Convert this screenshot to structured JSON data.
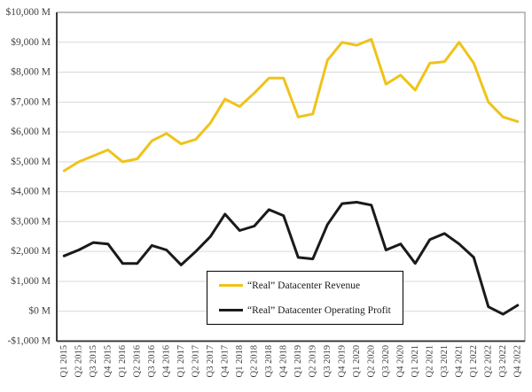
{
  "figure": {
    "background": "#FFFFFF",
    "plot_border_color": "#808080",
    "axis_line_color": "#262626",
    "gridline_color": "#D9D9D9",
    "tick_label_color": "#3F3F3F"
  },
  "chart_data": {
    "type": "line",
    "title": "",
    "xlabel": "",
    "ylabel": "",
    "ylim": [
      -1000,
      10000
    ],
    "grid": "horizontal gridlines every $1,000 M",
    "legend_position": "inside bottom-center, boxed",
    "x_label_rotation": -90,
    "yticks": [
      {
        "value": 10000,
        "label": "$10,000 M"
      },
      {
        "value": 9000,
        "label": "$9,000 M"
      },
      {
        "value": 8000,
        "label": "$8,000 M"
      },
      {
        "value": 7000,
        "label": "$7,000 M"
      },
      {
        "value": 6000,
        "label": "$6,000 M"
      },
      {
        "value": 5000,
        "label": "$5,000 M"
      },
      {
        "value": 4000,
        "label": "$4,000 M"
      },
      {
        "value": 3000,
        "label": "$3,000 M"
      },
      {
        "value": 2000,
        "label": "$2,000 M"
      },
      {
        "value": 1000,
        "label": "$1,000 M"
      },
      {
        "value": 0,
        "label": "$0 M"
      },
      {
        "value": -1000,
        "label": "-$1,000 M"
      }
    ],
    "categories": [
      "Q1 2015",
      "Q2 2015",
      "Q3 2015",
      "Q4 2015",
      "Q1 2016",
      "Q2 2016",
      "Q3 2016",
      "Q4 2016",
      "Q1 2017",
      "Q2 2017",
      "Q3 2017",
      "Q4 2017",
      "Q1 2018",
      "Q2 2018",
      "Q3 2018",
      "Q4 2018",
      "Q1 2019",
      "Q2 2019",
      "Q3 2019",
      "Q4 2019",
      "Q1 2020",
      "Q2 2020",
      "Q3 2020",
      "Q4 2020",
      "Q1 2021",
      "Q2 2021",
      "Q3 2021",
      "Q4 2021",
      "Q1 2022",
      "Q2 2022",
      "Q3 2022",
      "Q4 2022"
    ],
    "series": [
      {
        "id": "revenue",
        "name": "“Real” Datacenter Revenue",
        "color": "#EFC319",
        "values": [
          4700,
          5000,
          5200,
          5400,
          5000,
          5100,
          5700,
          5950,
          5600,
          5750,
          6300,
          7100,
          6850,
          7300,
          7800,
          7800,
          6500,
          6600,
          8400,
          9000,
          8900,
          9100,
          7600,
          7900,
          7400,
          8300,
          8350,
          9000,
          8300,
          7000,
          6500,
          6350
        ]
      },
      {
        "id": "operating-profit",
        "name": "“Real” Datacenter Operating Profit",
        "color": "#1A1A1A",
        "values": [
          1850,
          2050,
          2300,
          2250,
          1600,
          1600,
          2200,
          2050,
          1550,
          2000,
          2500,
          3250,
          2700,
          2850,
          3400,
          3200,
          1800,
          1750,
          2900,
          3600,
          3650,
          3550,
          2050,
          2250,
          1600,
          2400,
          2600,
          2250,
          1800,
          150,
          -100,
          200
        ]
      }
    ]
  }
}
